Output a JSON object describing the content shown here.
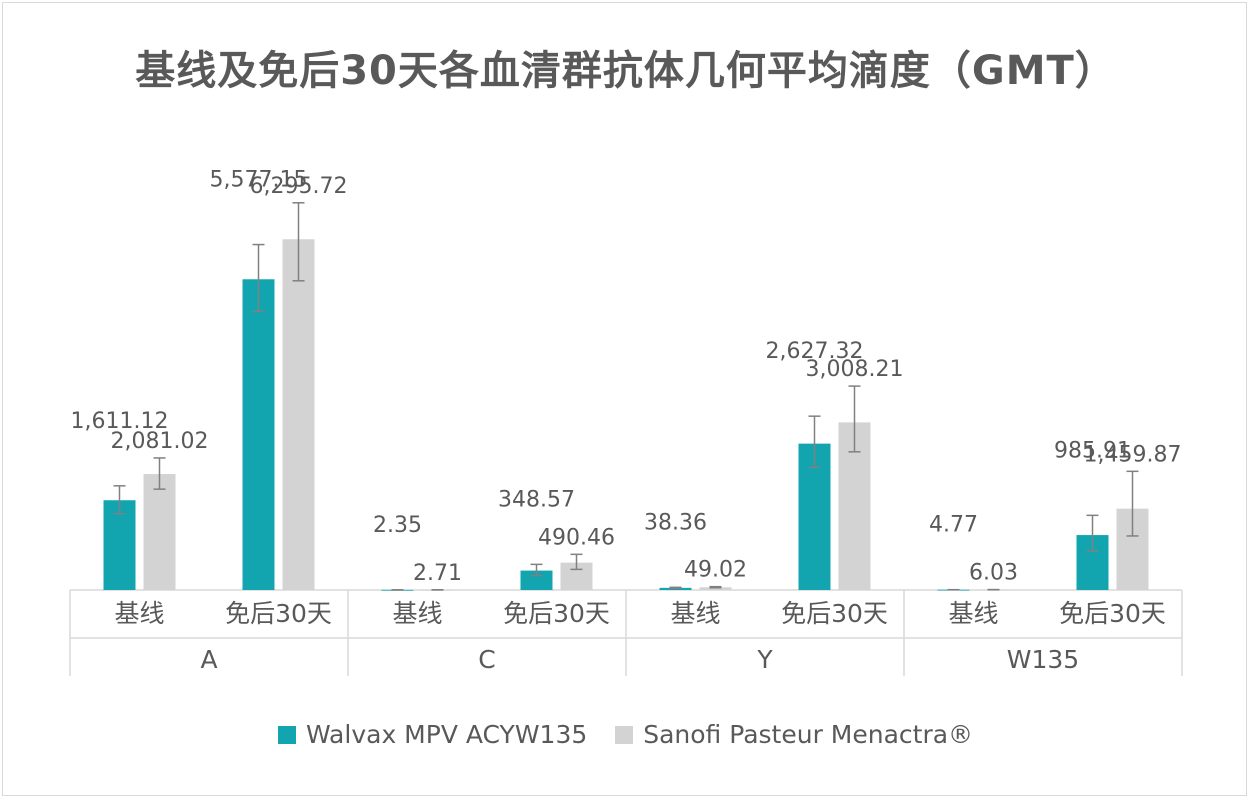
{
  "chart_data": {
    "type": "bar",
    "title": "基线及免后30天各血清群抗体几何平均滴度（GMT）",
    "groups": [
      {
        "name": "A",
        "categories": [
          "基线",
          "免后30天"
        ]
      },
      {
        "name": "C",
        "categories": [
          "基线",
          "免后30天"
        ]
      },
      {
        "name": "Y",
        "categories": [
          "基线",
          "免后30天"
        ]
      },
      {
        "name": "W135",
        "categories": [
          "基线",
          "免后30天"
        ]
      }
    ],
    "series": [
      {
        "name": "Walvax MPV ACYW135",
        "color": "#12A5B0",
        "values": [
          1611.12,
          5577.15,
          2.35,
          348.57,
          38.36,
          2627.32,
          4.77,
          985.91
        ],
        "labels": [
          "1,611.12",
          "5,577.15",
          "2.35",
          "348.57",
          "38.36",
          "2,627.32",
          "4.77",
          "985.91"
        ],
        "error_low": [
          1370,
          5000,
          1.9,
          260,
          30,
          2200,
          4.0,
          700
        ],
        "error_high": [
          1870,
          6200,
          2.9,
          460,
          48,
          3120,
          5.8,
          1340
        ]
      },
      {
        "name": "Sanofi Pasteur Menactra®",
        "color": "#D3D3D3",
        "values": [
          2081.02,
          6295.72,
          2.71,
          490.46,
          49.02,
          3008.21,
          6.03,
          1459.87
        ],
        "labels": [
          "2,081.02",
          "6,295.72",
          "2.71",
          "490.46",
          "49.02",
          "3,008.21",
          "6.03",
          "1,459.87"
        ],
        "error_low": [
          1810,
          5550,
          2.2,
          370,
          40,
          2480,
          5.0,
          970
        ],
        "error_high": [
          2370,
          6950,
          3.4,
          640,
          60,
          3660,
          7.4,
          2130
        ]
      }
    ],
    "ylim": [
      0,
      7000
    ],
    "grid": false,
    "legend_position": "bottom"
  }
}
